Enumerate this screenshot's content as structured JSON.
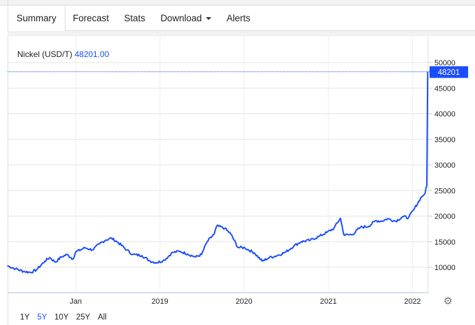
{
  "tabs": [
    {
      "label": "Summary",
      "active": true
    },
    {
      "label": "Forecast"
    },
    {
      "label": "Stats"
    },
    {
      "label": "Download",
      "dropdown": true
    },
    {
      "label": "Alerts"
    }
  ],
  "chart_header": {
    "label": "Nickel (USD/T)",
    "value": "48201.00"
  },
  "ranges": [
    {
      "label": "1Y"
    },
    {
      "label": "5Y",
      "active": true
    },
    {
      "label": "10Y"
    },
    {
      "label": "25Y"
    },
    {
      "label": "All"
    }
  ],
  "colors": {
    "series": "#1a4dff",
    "accent": "#1a4dff"
  },
  "chart_data": {
    "type": "line",
    "ylim": [
      10000,
      50000
    ],
    "yticks": [
      "10000",
      "15000",
      "20000",
      "25000",
      "30000",
      "35000",
      "40000",
      "45000",
      "50000"
    ],
    "xticks": [
      {
        "label": "Jan",
        "date": "2018-01-01"
      },
      {
        "label": "2019",
        "date": "2019-01-01"
      },
      {
        "label": "2020",
        "date": "2020-01-01"
      },
      {
        "label": "2021",
        "date": "2021-01-01"
      },
      {
        "label": "2022",
        "date": "2022-01-01"
      }
    ],
    "last_value_label": "48201",
    "grid": true,
    "series": [
      {
        "points": [
          [
            "2017-03-10",
            10300
          ],
          [
            "2017-04-15",
            9700
          ],
          [
            "2017-05-20",
            9200
          ],
          [
            "2017-06-20",
            9000
          ],
          [
            "2017-07-15",
            9500
          ],
          [
            "2017-08-20",
            11200
          ],
          [
            "2017-09-10",
            11900
          ],
          [
            "2017-10-05",
            11000
          ],
          [
            "2017-10-30",
            12000
          ],
          [
            "2017-11-25",
            12500
          ],
          [
            "2017-12-20",
            11600
          ],
          [
            "2018-01-01",
            13000
          ],
          [
            "2018-02-10",
            13800
          ],
          [
            "2018-03-15",
            13400
          ],
          [
            "2018-04-15",
            14600
          ],
          [
            "2018-05-10",
            15300
          ],
          [
            "2018-06-05",
            15700
          ],
          [
            "2018-07-05",
            14800
          ],
          [
            "2018-08-10",
            13400
          ],
          [
            "2018-09-05",
            12500
          ],
          [
            "2018-10-15",
            12300
          ],
          [
            "2018-11-20",
            11200
          ],
          [
            "2018-12-20",
            10900
          ],
          [
            "2019-01-20",
            11400
          ],
          [
            "2019-02-25",
            12900
          ],
          [
            "2019-03-30",
            13100
          ],
          [
            "2019-05-01",
            12600
          ],
          [
            "2019-06-05",
            12000
          ],
          [
            "2019-07-01",
            12500
          ],
          [
            "2019-07-25",
            15000
          ],
          [
            "2019-08-25",
            16500
          ],
          [
            "2019-09-05",
            18100
          ],
          [
            "2019-10-10",
            17600
          ],
          [
            "2019-11-05",
            16500
          ],
          [
            "2019-12-05",
            13900
          ],
          [
            "2020-01-05",
            13800
          ],
          [
            "2020-02-15",
            12800
          ],
          [
            "2020-03-20",
            11200
          ],
          [
            "2020-04-20",
            11900
          ],
          [
            "2020-05-25",
            12300
          ],
          [
            "2020-07-01",
            13000
          ],
          [
            "2020-08-05",
            14200
          ],
          [
            "2020-09-05",
            15000
          ],
          [
            "2020-10-15",
            15300
          ],
          [
            "2020-11-20",
            16000
          ],
          [
            "2020-12-25",
            16800
          ],
          [
            "2021-01-25",
            17600
          ],
          [
            "2021-02-22",
            19600
          ],
          [
            "2021-03-10",
            16300
          ],
          [
            "2021-04-15",
            16400
          ],
          [
            "2021-05-20",
            17800
          ],
          [
            "2021-06-25",
            18000
          ],
          [
            "2021-07-25",
            19100
          ],
          [
            "2021-08-20",
            19000
          ],
          [
            "2021-09-15",
            19500
          ],
          [
            "2021-10-20",
            19000
          ],
          [
            "2021-11-20",
            19900
          ],
          [
            "2021-12-15",
            19700
          ],
          [
            "2022-01-10",
            21500
          ],
          [
            "2022-02-05",
            23500
          ],
          [
            "2022-02-25",
            24500
          ],
          [
            "2022-03-04",
            26000
          ],
          [
            "2022-03-08",
            48201
          ]
        ]
      }
    ]
  }
}
